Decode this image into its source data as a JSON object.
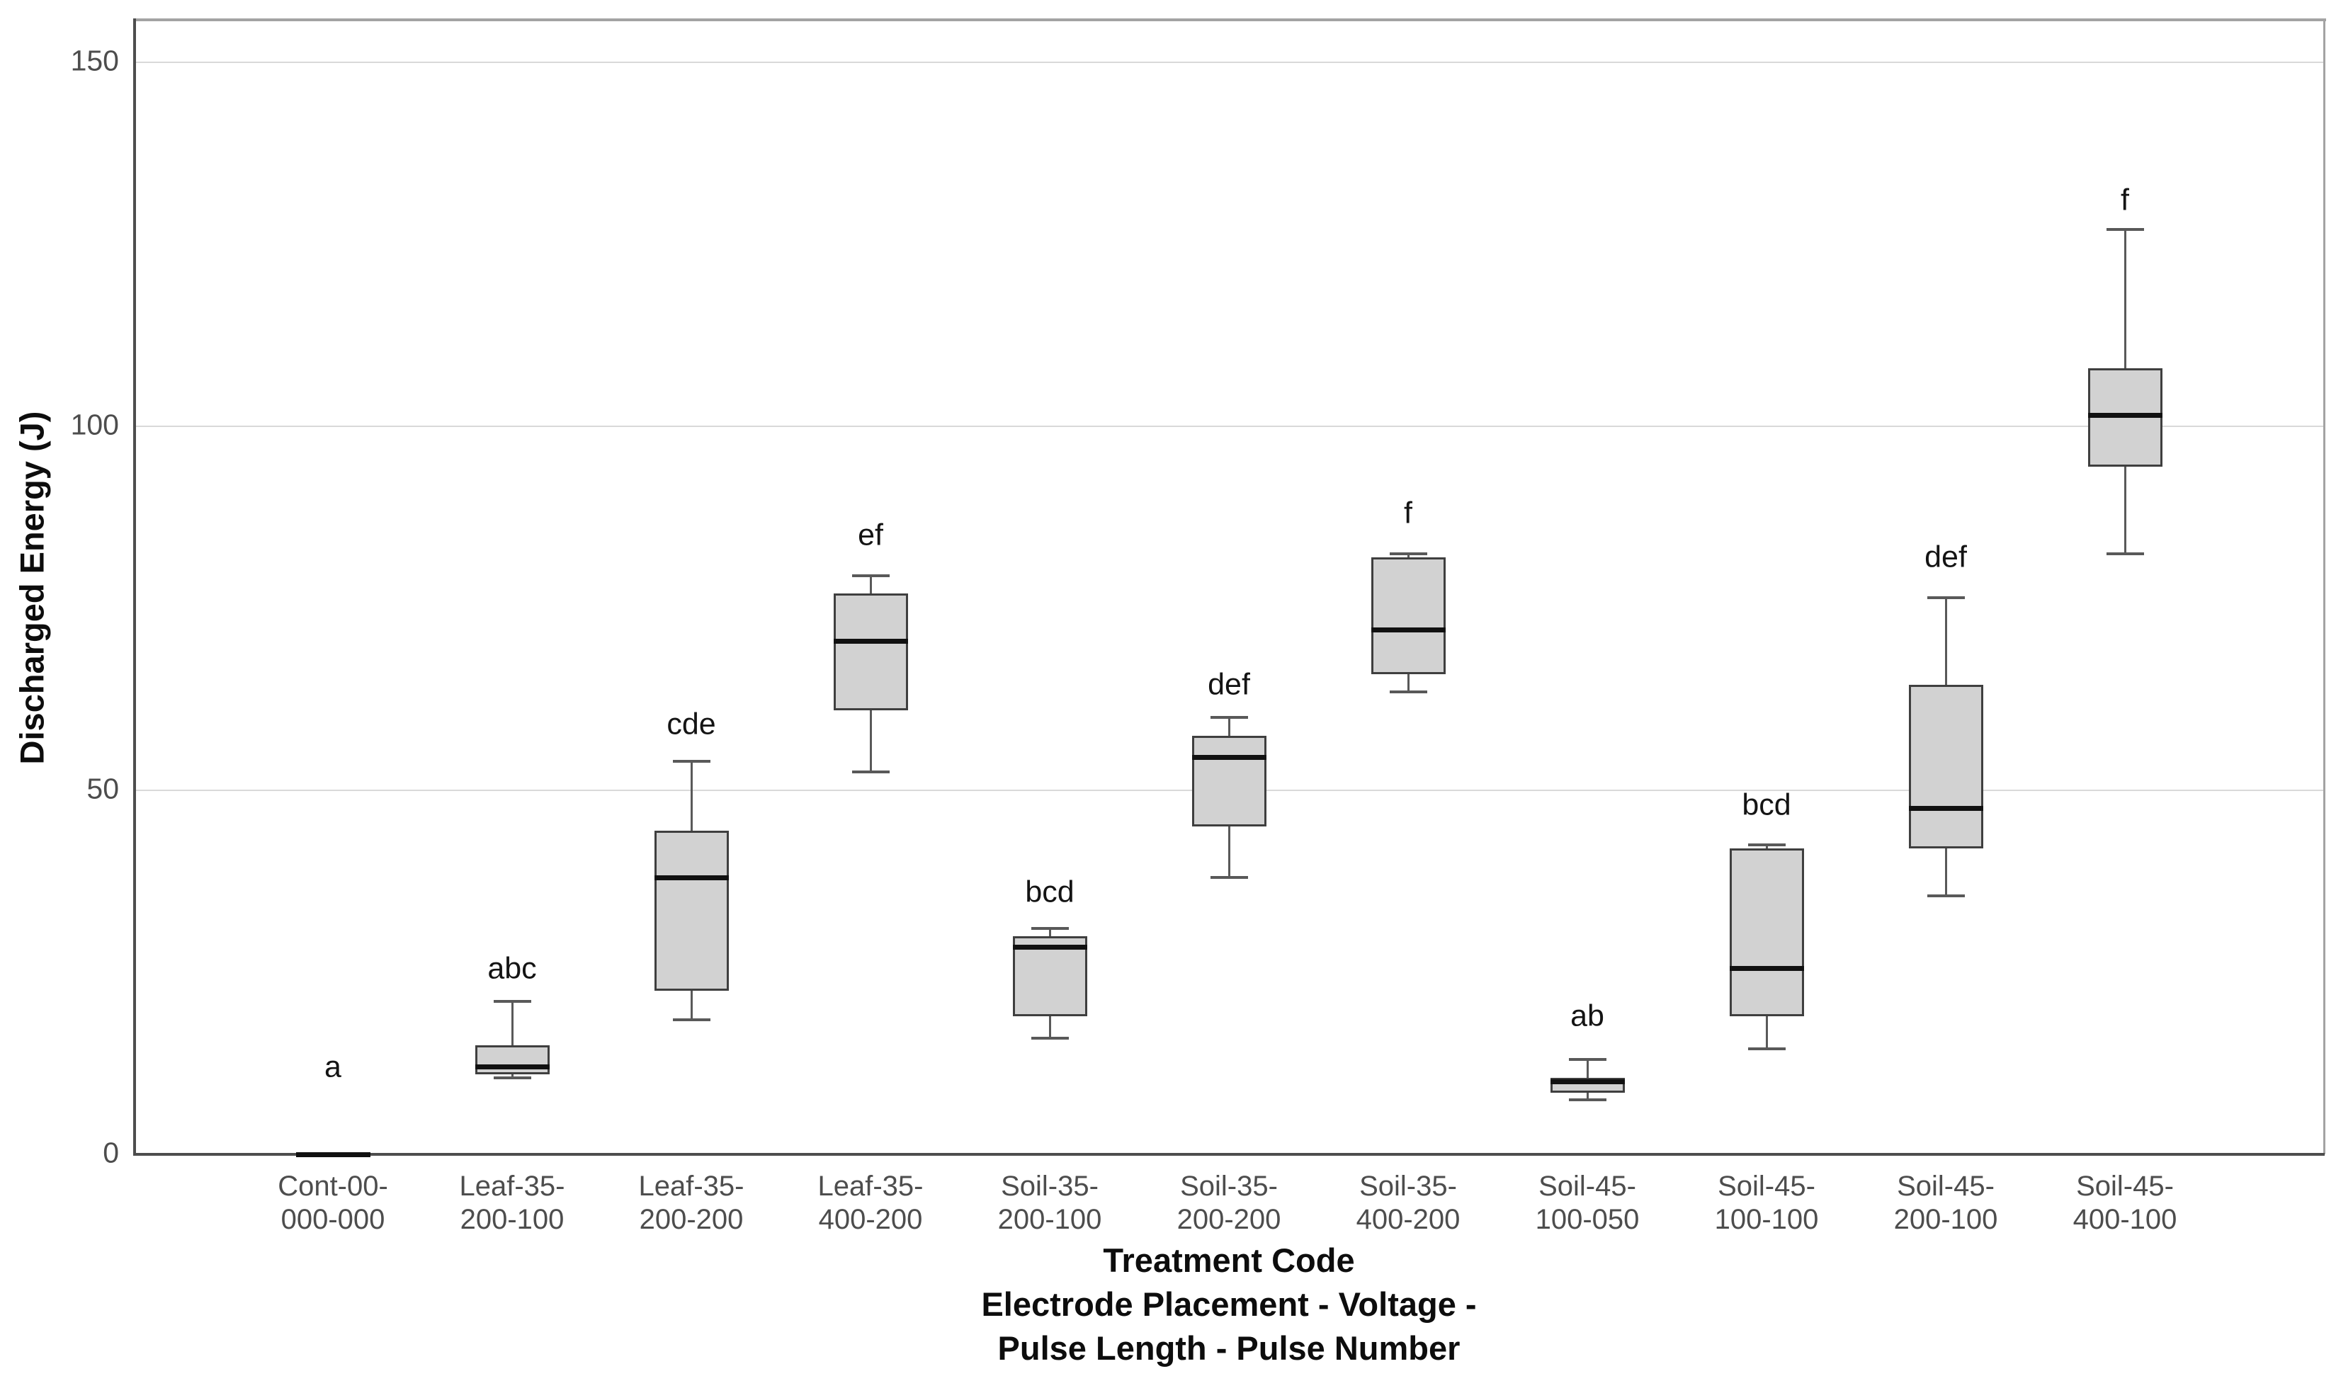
{
  "chart_data": {
    "type": "boxplot",
    "title": "",
    "ylabel": "Discharged Energy (J)",
    "xlabel_lines": [
      "Treatment Code",
      "Electrode Placement - Voltage -",
      "Pulse Length - Pulse Number"
    ],
    "yticks": [
      0,
      50,
      100,
      150
    ],
    "ylim": [
      0,
      156
    ],
    "grid": "horizontal",
    "legend": "none",
    "categories": [
      {
        "label_lines": [
          "Cont-00-",
          "000-000"
        ],
        "letter": "a",
        "letter_y": 12,
        "min": 0,
        "q1": 0,
        "median": 0,
        "q3": 0,
        "max": 0
      },
      {
        "label_lines": [
          "Leaf-35-",
          "200-100"
        ],
        "letter": "abc",
        "letter_y": 25.5,
        "min": 10.5,
        "q1": 11,
        "median": 12,
        "q3": 15,
        "max": 21
      },
      {
        "label_lines": [
          "Leaf-35-",
          "200-200"
        ],
        "letter": "cde",
        "letter_y": 59,
        "min": 18.5,
        "q1": 22.5,
        "median": 38,
        "q3": 44.5,
        "max": 54
      },
      {
        "label_lines": [
          "Leaf-35-",
          "400-200"
        ],
        "letter": "ef",
        "letter_y": 85,
        "min": 52.5,
        "q1": 61,
        "median": 70.5,
        "q3": 77,
        "max": 79.5
      },
      {
        "label_lines": [
          "Soil-35-",
          "200-100"
        ],
        "letter": "bcd",
        "letter_y": 36,
        "min": 16,
        "q1": 19,
        "median": 28.5,
        "q3": 30,
        "max": 31
      },
      {
        "label_lines": [
          "Soil-35-",
          "200-200"
        ],
        "letter": "def",
        "letter_y": 64.5,
        "min": 38,
        "q1": 45,
        "median": 54.5,
        "q3": 57.5,
        "max": 60
      },
      {
        "label_lines": [
          "Soil-35-",
          "400-200"
        ],
        "letter": "f",
        "letter_y": 88,
        "min": 63.5,
        "q1": 66,
        "median": 72,
        "q3": 82,
        "max": 82.5
      },
      {
        "label_lines": [
          "Soil-45-",
          "100-050"
        ],
        "letter": "ab",
        "letter_y": 19,
        "min": 7.5,
        "q1": 8.5,
        "median": 10,
        "q3": 10.5,
        "max": 13
      },
      {
        "label_lines": [
          "Soil-45-",
          "100-100"
        ],
        "letter": "bcd",
        "letter_y": 48,
        "min": 14.5,
        "q1": 19,
        "median": 25.5,
        "q3": 42,
        "max": 42.5
      },
      {
        "label_lines": [
          "Soil-45-",
          "200-100"
        ],
        "letter": "def",
        "letter_y": 82,
        "min": 35.5,
        "q1": 42,
        "median": 47.5,
        "q3": 64.5,
        "max": 76.5
      },
      {
        "label_lines": [
          "Soil-45-",
          "400-100"
        ],
        "letter": "f",
        "letter_y": 131,
        "min": 82.5,
        "q1": 94.5,
        "median": 101.5,
        "q3": 108,
        "max": 127
      }
    ]
  },
  "colors": {
    "box_fill": "#d2d2d2",
    "box_border": "#3f3f3f",
    "median": "#111111",
    "whisker": "#595959",
    "gridline": "#d9d9d9",
    "axis": "#4d4d4d",
    "frame": "#a3a3a3",
    "tick_label": "#4d4d4d",
    "text": "#0d0d0d"
  }
}
